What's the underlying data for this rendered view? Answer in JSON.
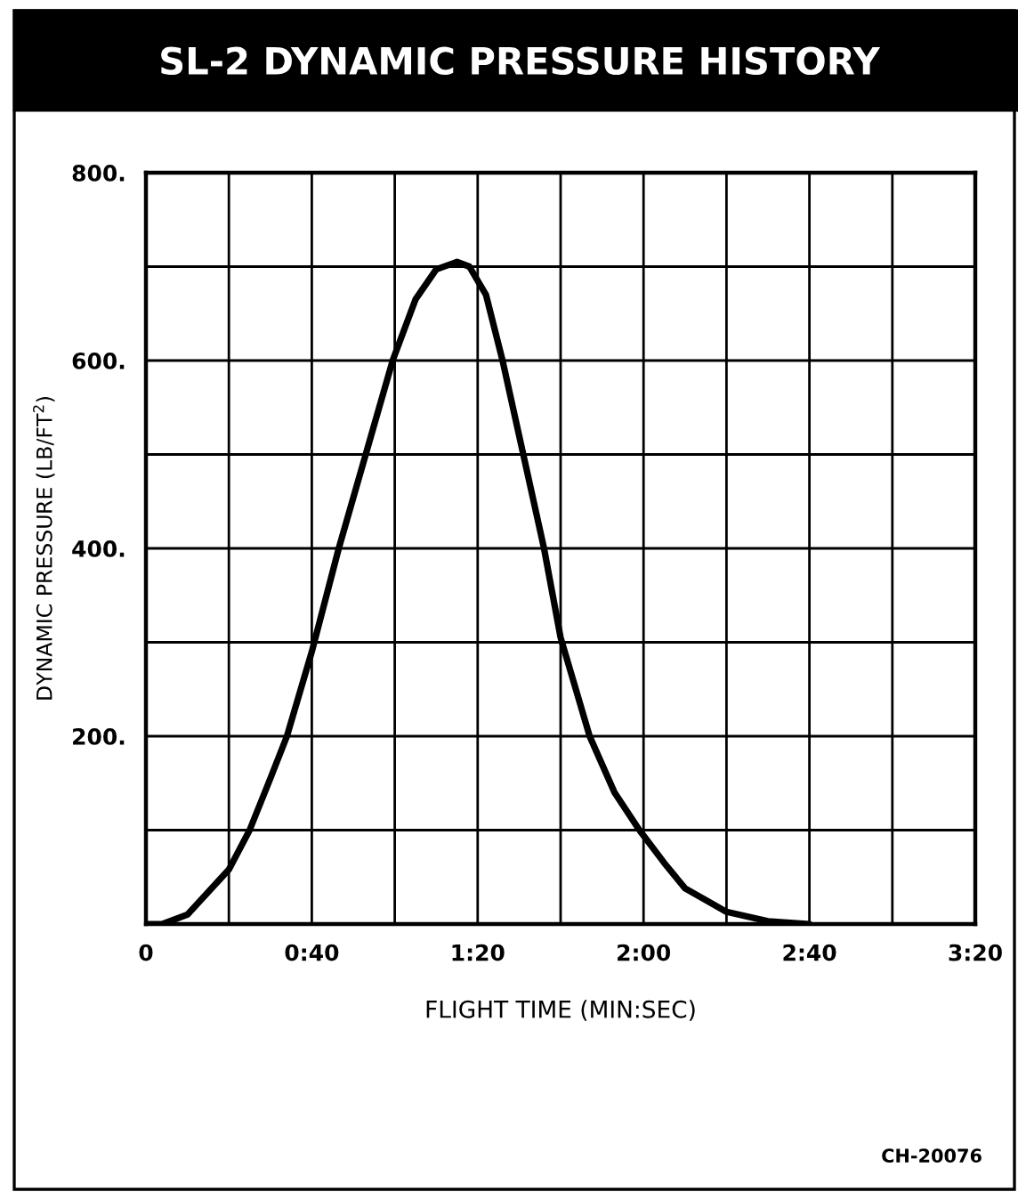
{
  "chart_data": {
    "type": "line",
    "title": "SL-2 DYNAMIC PRESSURE HISTORY",
    "xlabel": "FLIGHT TIME (MIN:SEC)",
    "ylabel": "DYNAMIC PRESSURE (LB/FT$^{2}$)",
    "x": [
      0,
      4,
      10,
      20,
      25,
      30,
      34,
      40,
      46.5,
      53,
      59.5,
      65,
      70,
      75,
      78,
      82,
      86,
      91,
      96,
      100,
      107,
      113,
      119,
      125,
      130,
      140,
      150,
      160
    ],
    "series": [
      {
        "color": "#000000",
        "values": [
          0,
          0,
          10,
          58,
          100,
          155,
          200,
          290,
          400,
          500,
          600,
          665,
          697,
          705,
          700,
          670,
          600,
          500,
          400,
          305,
          200,
          140,
          100,
          65,
          38,
          13,
          3,
          0
        ]
      }
    ],
    "xlim": [
      0,
      200
    ],
    "ylim": [
      0,
      800
    ],
    "xticks": [
      0,
      {
        "value": 20,
        "label": null
      },
      {
        "value": 40,
        "label": "0:40"
      },
      {
        "value": 60,
        "label": null
      },
      {
        "value": 80,
        "label": "1:20"
      },
      {
        "value": 100,
        "label": null
      },
      {
        "value": 120,
        "label": "2:00"
      },
      {
        "value": 140,
        "label": null
      },
      {
        "value": 160,
        "label": "2:40"
      },
      {
        "value": 180,
        "label": null
      },
      {
        "value": 200,
        "label": "3:20"
      }
    ],
    "yticks": [
      {
        "value": 100,
        "label": null
      },
      {
        "value": 200,
        "label": "200."
      },
      {
        "value": 300,
        "label": null
      },
      {
        "value": 400,
        "label": "400."
      },
      {
        "value": 500,
        "label": null
      },
      {
        "value": 600,
        "label": "600."
      },
      {
        "value": 700,
        "label": null
      },
      {
        "value": 800,
        "label": "800."
      }
    ],
    "grid": true,
    "marker": "none",
    "line_style": "solid",
    "legend": false,
    "annotations": [
      "CH-20076"
    ]
  }
}
